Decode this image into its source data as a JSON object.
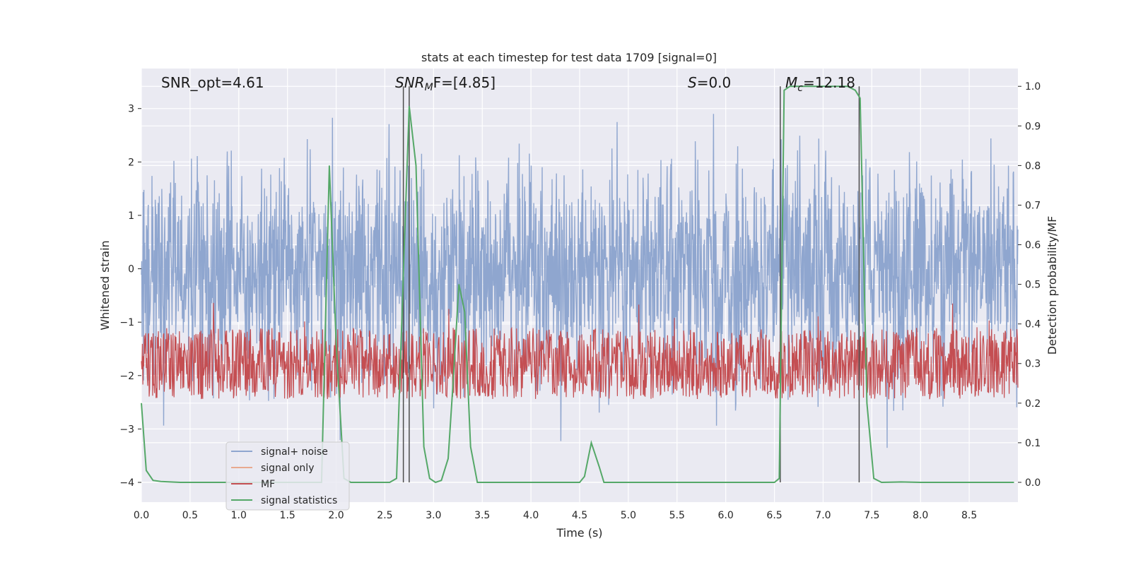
{
  "chart_data": {
    "type": "line",
    "title": "stats at each timestep for test data 1709 [signal=0]",
    "xlabel": "Time (s)",
    "ylabel": "Whitened strain",
    "ylabel_right": "Detection probability/MF",
    "xlim": [
      0.0,
      9.0
    ],
    "ylim": [
      -4.37,
      3.75
    ],
    "ylim_right": [
      -0.05,
      1.045
    ],
    "x_ticks": [
      "0.0",
      "0.5",
      "1.0",
      "1.5",
      "2.0",
      "2.5",
      "3.0",
      "3.5",
      "4.0",
      "4.5",
      "5.0",
      "5.5",
      "6.0",
      "6.5",
      "7.0",
      "7.5",
      "8.0",
      "8.5"
    ],
    "y_ticks": [
      "−4",
      "−3",
      "−2",
      "−1",
      "0",
      "1",
      "2",
      "3"
    ],
    "y_right_ticks": [
      "0.0",
      "0.1",
      "0.2",
      "0.3",
      "0.4",
      "0.5",
      "0.6",
      "0.7",
      "0.8",
      "0.9",
      "1.0"
    ],
    "annotations": {
      "snr_opt": "SNR_opt=4.61",
      "snr_mf_prefix": "SNR",
      "snr_mf_sub": "M",
      "snr_mf_suffix": "F=[4.85]",
      "s_label": "S",
      "s_value": "=0.0",
      "mc_label": "M",
      "mc_sub": "c",
      "mc_value": "=12.18"
    },
    "vlines": [
      2.69,
      2.75,
      6.56,
      7.37
    ],
    "noise": {
      "seed": 1709,
      "std": 0.75,
      "x_start": 0.0,
      "x_end": 9.0
    },
    "mf": {
      "baseline": 0.3,
      "spread": 0.09
    },
    "series": [
      {
        "name": "signal+ noise",
        "color": "#8fa6cf"
      },
      {
        "name": "signal only",
        "color": "#e8a98f"
      },
      {
        "name": "MF",
        "color": "#c44e52"
      },
      {
        "name": "signal statistics",
        "color": "#55a868",
        "x": [
          0.0,
          0.05,
          0.12,
          0.2,
          0.4,
          1.0,
          1.5,
          1.85,
          1.93,
          2.0,
          2.08,
          2.15,
          2.55,
          2.62,
          2.7,
          2.75,
          2.82,
          2.9,
          2.96,
          3.02,
          3.08,
          3.15,
          3.2,
          3.26,
          3.32,
          3.38,
          3.45,
          3.5,
          4.0,
          4.5,
          4.55,
          4.62,
          4.7,
          4.75,
          5.5,
          6.5,
          6.55,
          6.6,
          6.66,
          6.75,
          7.0,
          7.25,
          7.33,
          7.38,
          7.45,
          7.52,
          7.6,
          7.8,
          8.0,
          8.5,
          8.96
        ],
        "y": [
          0.2,
          0.03,
          0.005,
          0.002,
          0.0,
          0.0,
          0.0,
          0.0,
          0.8,
          0.35,
          0.01,
          0.0,
          0.0,
          0.01,
          0.6,
          0.95,
          0.8,
          0.09,
          0.01,
          0.0,
          0.005,
          0.06,
          0.25,
          0.5,
          0.43,
          0.09,
          0.0,
          0.0,
          0.0,
          0.0,
          0.015,
          0.1,
          0.04,
          0.0,
          0.0,
          0.0,
          0.01,
          0.99,
          1.0,
          1.0,
          1.0,
          1.0,
          0.99,
          0.97,
          0.2,
          0.01,
          0.0,
          0.001,
          0.0,
          0.0,
          0.0
        ]
      }
    ],
    "legend_position": "lower-left",
    "grid": true
  }
}
